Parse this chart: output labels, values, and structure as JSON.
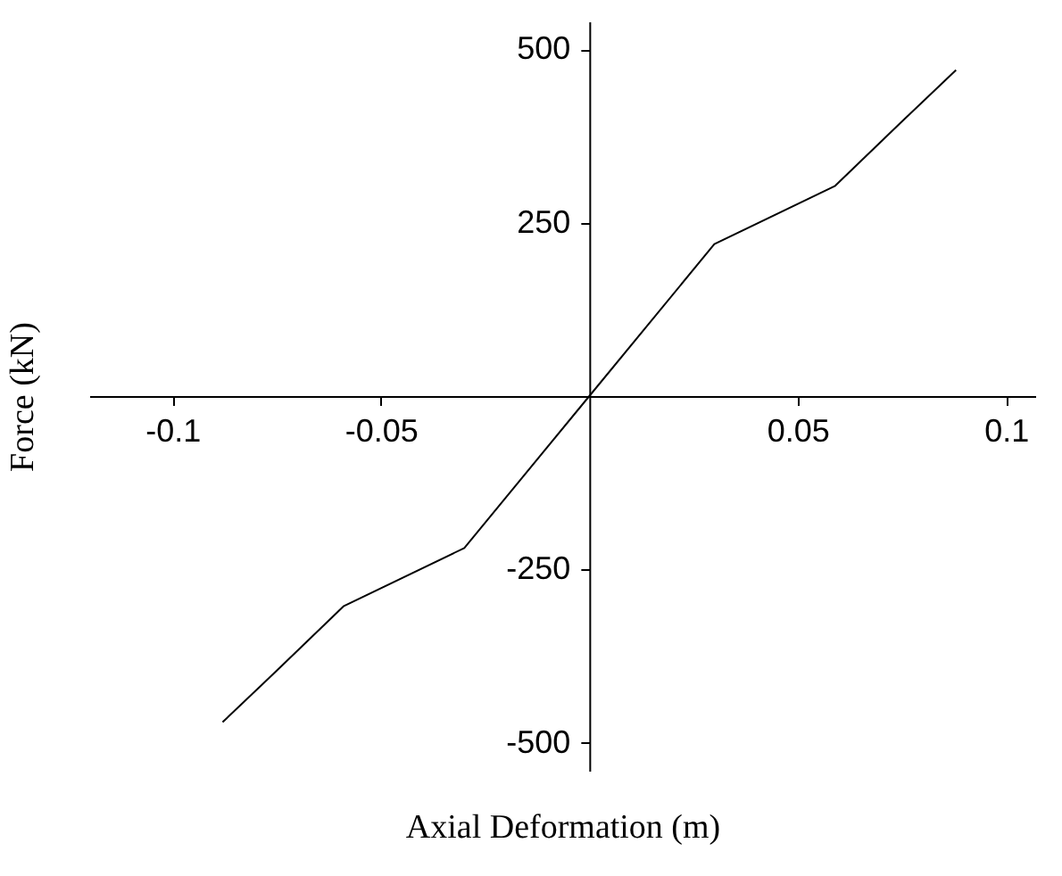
{
  "chart_data": {
    "type": "line",
    "xlabel": "Axial Deformation (m)",
    "ylabel": "Force (kN)",
    "x": [
      -0.088,
      -0.074,
      -0.059,
      -0.03,
      0,
      0.03,
      0.059,
      0.074,
      0.088
    ],
    "series": [
      {
        "color": "#000000",
        "values": [
          -470,
          -390,
          -303,
          -219,
          0,
          219,
          303,
          390,
          470
        ]
      }
    ],
    "xlim": [
      -0.12,
      0.107
    ],
    "ylim": [
      -540,
      540
    ],
    "xticks": [
      -0.1,
      -0.05,
      0.05,
      0.1
    ],
    "yticks": [
      -500,
      -250,
      250,
      500
    ],
    "grid": false,
    "marker": "none",
    "line_style": "solid"
  }
}
